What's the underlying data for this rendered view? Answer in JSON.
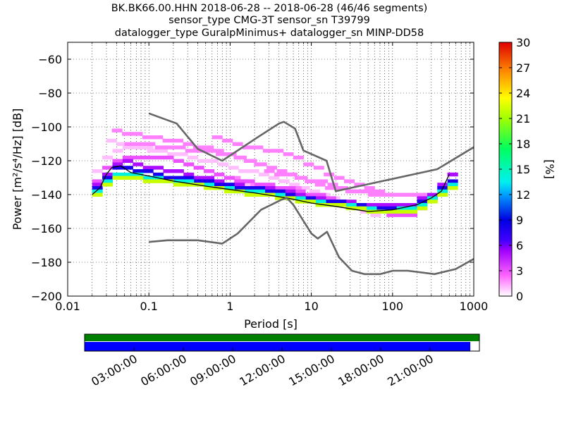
{
  "header": {
    "line1": "BK.BK66.00.HHN   2018-06-28 -- 2018-06-28  (46/46 segments)",
    "line2": "sensor_type CMG-3T sensor_sn T39799",
    "line3": "datalogger_type GuralpMinimus+ datalogger_sn MINP-DD58"
  },
  "chart_data": {
    "type": "heatmap",
    "xlabel": "Period [s]",
    "ylabel": "Power [m²/s⁴/Hz] [dB]",
    "x_scale": "log",
    "xlim": [
      0.01,
      1000
    ],
    "ylim": [
      -200,
      -50
    ],
    "x_ticks": [
      0.01,
      0.1,
      1,
      10,
      100,
      1000
    ],
    "x_tick_labels": [
      "0.01",
      "0.1",
      "1",
      "10",
      "100",
      "1000"
    ],
    "y_ticks": [
      -200,
      -180,
      -160,
      -140,
      -120,
      -100,
      -80,
      -60
    ],
    "y_tick_labels": [
      "−200",
      "−180",
      "−160",
      "−140",
      "−120",
      "−100",
      "−80",
      "−60"
    ],
    "grid": true,
    "colorbar": {
      "label": "[%]",
      "min": 0,
      "max": 30,
      "ticks": [
        0,
        3,
        6,
        9,
        12,
        15,
        18,
        21,
        24,
        27,
        30
      ]
    },
    "noise_models": [
      {
        "points": [
          [
            0.1,
            -92
          ],
          [
            0.22,
            -98
          ],
          [
            0.4,
            -113
          ],
          [
            0.8,
            -120
          ],
          [
            2.2,
            -106
          ],
          [
            4.0,
            -98
          ],
          [
            4.6,
            -97
          ],
          [
            6.3,
            -101
          ],
          [
            8.0,
            -114
          ],
          [
            15.4,
            -120
          ],
          [
            20.0,
            -138
          ],
          [
            354.8,
            -125
          ],
          [
            1000,
            -112
          ]
        ]
      },
      {
        "points": [
          [
            0.1,
            -168
          ],
          [
            0.17,
            -167
          ],
          [
            0.4,
            -167
          ],
          [
            0.8,
            -169
          ],
          [
            1.24,
            -163
          ],
          [
            2.4,
            -149
          ],
          [
            4.3,
            -143
          ],
          [
            5.0,
            -142
          ],
          [
            6.0,
            -146
          ],
          [
            10.0,
            -163
          ],
          [
            12.0,
            -166
          ],
          [
            15.6,
            -162
          ],
          [
            21.9,
            -177
          ],
          [
            31.6,
            -185
          ],
          [
            45.0,
            -187
          ],
          [
            70.8,
            -187
          ],
          [
            101,
            -185
          ],
          [
            154,
            -185
          ],
          [
            328,
            -187
          ],
          [
            600,
            -184
          ],
          [
            1000,
            -178
          ]
        ]
      }
    ],
    "mode_curve": [
      [
        0.02,
        -140
      ],
      [
        0.025,
        -136
      ],
      [
        0.03,
        -128
      ],
      [
        0.035,
        -124
      ],
      [
        0.045,
        -123
      ],
      [
        0.06,
        -127
      ],
      [
        0.1,
        -129
      ],
      [
        0.2,
        -132
      ],
      [
        0.5,
        -135
      ],
      [
        1,
        -137
      ],
      [
        2,
        -139
      ],
      [
        5,
        -142
      ],
      [
        10,
        -145
      ],
      [
        20,
        -147
      ],
      [
        50,
        -150
      ],
      [
        100,
        -149
      ],
      [
        200,
        -146
      ],
      [
        300,
        -142
      ],
      [
        400,
        -138
      ],
      [
        500,
        -128
      ]
    ],
    "ppd_bands": [
      {
        "percent": 22,
        "points": [
          [
            0.02,
            -140
          ],
          [
            0.03,
            -131
          ],
          [
            0.04,
            -129
          ],
          [
            0.06,
            -130
          ],
          [
            0.1,
            -132
          ],
          [
            0.3,
            -134
          ],
          [
            1,
            -138
          ],
          [
            3,
            -141
          ],
          [
            10,
            -145
          ],
          [
            30,
            -148
          ],
          [
            70,
            -151
          ],
          [
            150,
            -150
          ],
          [
            300,
            -143
          ],
          [
            500,
            -136
          ]
        ]
      },
      {
        "percent": 14,
        "points": [
          [
            0.02,
            -139
          ],
          [
            0.03,
            -129
          ],
          [
            0.04,
            -127
          ],
          [
            0.06,
            -128
          ],
          [
            0.1,
            -130
          ],
          [
            0.3,
            -133
          ],
          [
            1,
            -137
          ],
          [
            3,
            -140
          ],
          [
            10,
            -144
          ],
          [
            30,
            -147
          ],
          [
            70,
            -150
          ],
          [
            150,
            -148
          ],
          [
            300,
            -141
          ],
          [
            500,
            -133
          ]
        ]
      },
      {
        "percent": 8,
        "points": [
          [
            0.02,
            -137
          ],
          [
            0.03,
            -126
          ],
          [
            0.04,
            -123
          ],
          [
            0.06,
            -125
          ],
          [
            0.1,
            -128
          ],
          [
            0.3,
            -131
          ],
          [
            1,
            -135
          ],
          [
            3,
            -138
          ],
          [
            10,
            -143
          ],
          [
            30,
            -146
          ],
          [
            70,
            -148
          ],
          [
            150,
            -147
          ],
          [
            300,
            -140
          ],
          [
            500,
            -130
          ]
        ]
      },
      {
        "percent": 5,
        "points": [
          [
            0.02,
            -135
          ],
          [
            0.03,
            -124
          ],
          [
            0.045,
            -120
          ],
          [
            0.06,
            -122
          ],
          [
            0.1,
            -124
          ],
          [
            0.2,
            -126
          ],
          [
            0.5,
            -131
          ],
          [
            1,
            -134
          ],
          [
            3,
            -137
          ],
          [
            10,
            -142
          ],
          [
            30,
            -145
          ],
          [
            70,
            -147
          ],
          [
            150,
            -145
          ],
          [
            300,
            -138
          ],
          [
            500,
            -127
          ]
        ]
      },
      {
        "percent": 3,
        "points": [
          [
            0.02,
            -133
          ],
          [
            0.03,
            -121
          ],
          [
            0.045,
            -117
          ],
          [
            0.06,
            -118
          ],
          [
            0.1,
            -117
          ],
          [
            0.15,
            -118
          ],
          [
            0.3,
            -124
          ],
          [
            1,
            -131
          ],
          [
            3,
            -135
          ],
          [
            10,
            -140
          ],
          [
            30,
            -146
          ],
          [
            70,
            -151
          ],
          [
            150,
            -152
          ],
          [
            300,
            -140
          ],
          [
            500,
            -126
          ]
        ]
      },
      {
        "percent": 2,
        "points": [
          [
            0.035,
            -103
          ],
          [
            0.1,
            -106
          ],
          [
            0.3,
            -110
          ],
          [
            1,
            -118
          ],
          [
            3,
            -126
          ],
          [
            10,
            -134
          ],
          [
            30,
            -138
          ],
          [
            100,
            -140
          ],
          [
            200,
            -141
          ]
        ]
      },
      {
        "percent": 2,
        "points": [
          [
            0.05,
            -110
          ],
          [
            0.2,
            -112
          ],
          [
            1,
            -117
          ],
          [
            3,
            -124
          ],
          [
            10,
            -132
          ],
          [
            30,
            -138
          ],
          [
            100,
            -141
          ]
        ]
      },
      {
        "percent": 1,
        "points": [
          [
            0.03,
            -108
          ],
          [
            0.1,
            -114
          ],
          [
            0.3,
            -118
          ],
          [
            1,
            -124
          ],
          [
            3,
            -130
          ],
          [
            10,
            -138
          ],
          [
            30,
            -146
          ],
          [
            70,
            -155
          ]
        ]
      },
      {
        "percent": 1,
        "points": [
          [
            0.02,
            -127
          ],
          [
            0.03,
            -115
          ],
          [
            0.05,
            -112
          ],
          [
            0.1,
            -113
          ],
          [
            0.2,
            -120
          ],
          [
            0.5,
            -126
          ],
          [
            1,
            -131
          ],
          [
            3,
            -137
          ],
          [
            10,
            -143
          ]
        ]
      },
      {
        "percent": 2,
        "points": [
          [
            0.6,
            -107
          ],
          [
            1,
            -109
          ],
          [
            2,
            -113
          ],
          [
            3,
            -114
          ],
          [
            5,
            -117
          ],
          [
            10,
            -124
          ],
          [
            20,
            -130
          ],
          [
            40,
            -136
          ],
          [
            60,
            -138
          ]
        ]
      },
      {
        "percent": 2,
        "points": [
          [
            1,
            -131
          ],
          [
            2,
            -134
          ],
          [
            4,
            -136
          ],
          [
            6,
            -137
          ]
        ]
      },
      {
        "percent": 1,
        "points": [
          [
            50,
            -140
          ],
          [
            100,
            -140
          ],
          [
            200,
            -139
          ]
        ]
      }
    ],
    "coverage": {
      "time_ticks": [
        "03:00:00",
        "06:00:00",
        "09:00:00",
        "12:00:00",
        "15:00:00",
        "18:00:00",
        "21:00:00"
      ],
      "green_fraction": 1.0,
      "blue_fraction": 0.977
    }
  },
  "colors": {
    "noise_model": "#666666",
    "mode_curve": "#000000",
    "coverage_green": "#008000",
    "coverage_blue": "#0000ff"
  }
}
